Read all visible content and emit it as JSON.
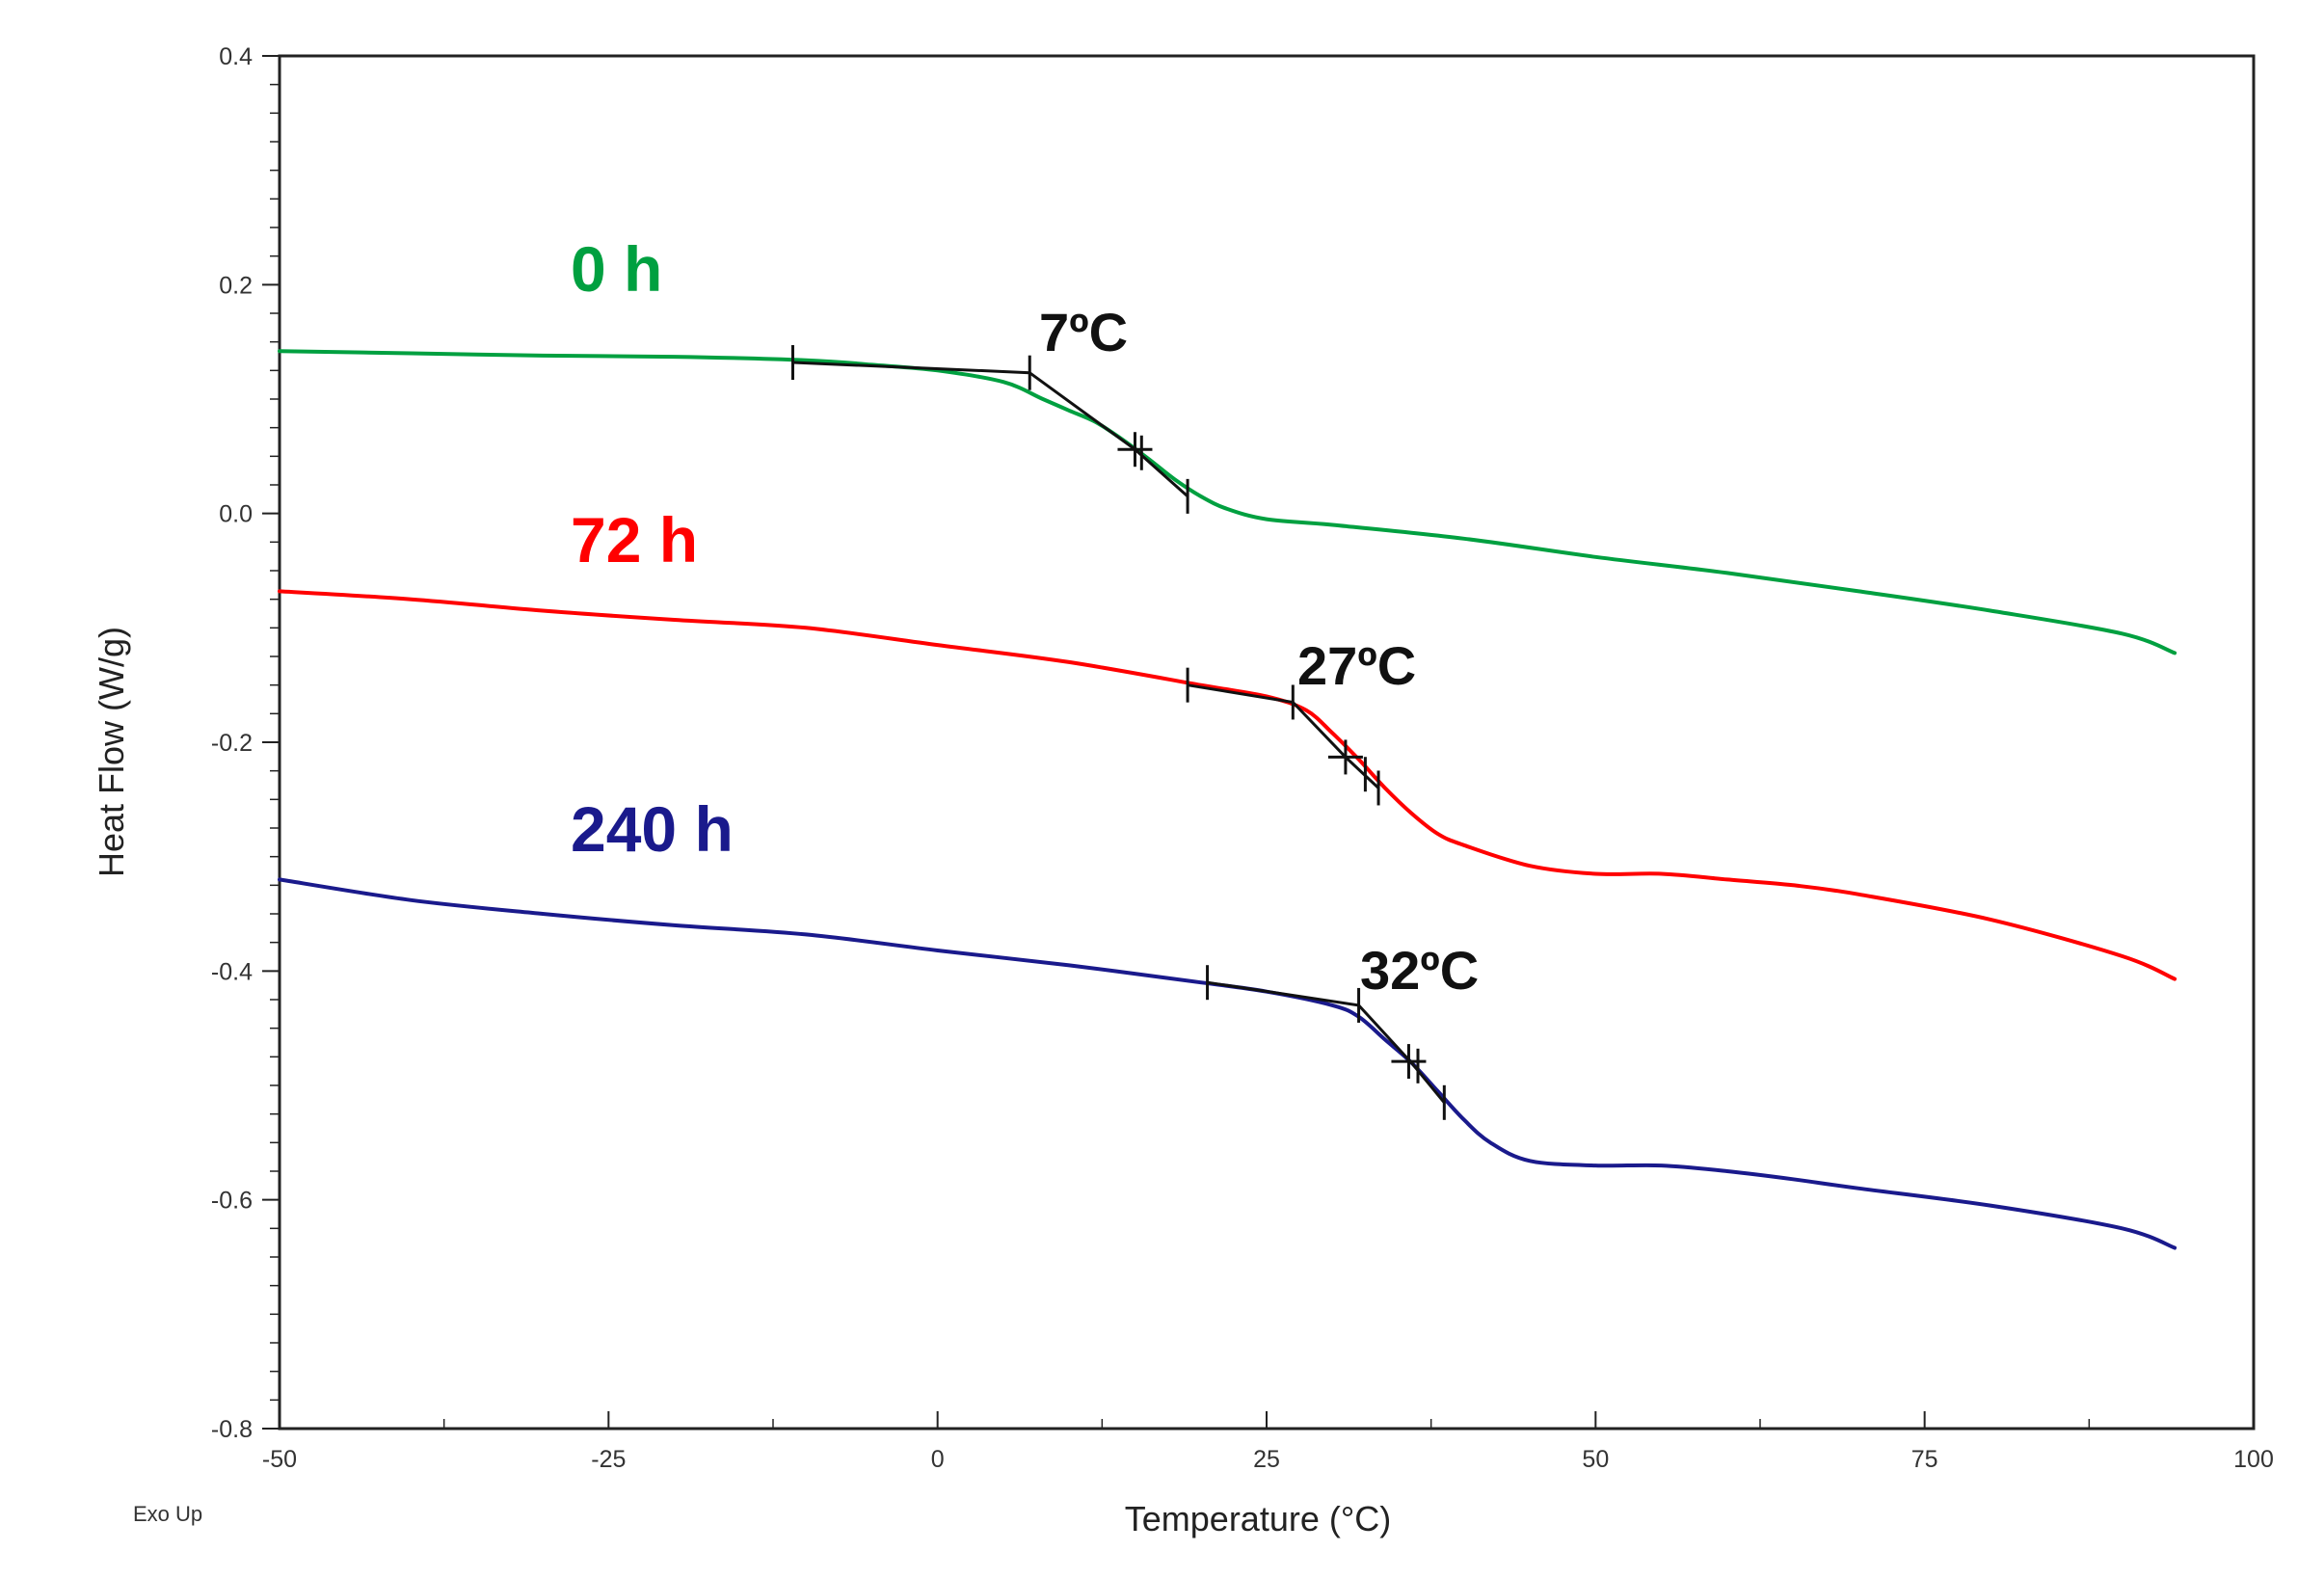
{
  "chart_data": {
    "type": "line",
    "xlabel": "Temperature (°C)",
    "ylabel": "Heat Flow (W/g)",
    "corner_note": "Exo Up",
    "xlim": [
      -50,
      100
    ],
    "ylim": [
      -0.8,
      0.4
    ],
    "x_ticks": [
      -50,
      -25,
      0,
      25,
      50,
      75,
      100
    ],
    "y_ticks": [
      -0.8,
      -0.6,
      -0.4,
      -0.2,
      0.0,
      0.2,
      0.4
    ],
    "x_tick_labels": [
      "-50",
      "-25",
      "0",
      "25",
      "50",
      "75",
      "100"
    ],
    "y_tick_labels": [
      "-0.8",
      "-0.6",
      "-0.4",
      "-0.2",
      "0.0",
      "0.2",
      "0.4"
    ],
    "grid": false,
    "series": [
      {
        "name": "0 h",
        "color": "#00a040",
        "x": [
          -50,
          -40,
          -30,
          -20,
          -10,
          -5,
          0,
          5,
          8,
          10,
          12,
          14,
          16,
          18,
          20,
          22,
          25,
          30,
          40,
          50,
          60,
          70,
          80,
          90,
          94
        ],
        "y": [
          0.142,
          0.14,
          0.138,
          0.137,
          0.134,
          0.13,
          0.125,
          0.115,
          0.1,
          0.09,
          0.08,
          0.065,
          0.048,
          0.03,
          0.015,
          0.004,
          -0.005,
          -0.01,
          -0.022,
          -0.038,
          -0.052,
          -0.068,
          -0.085,
          -0.105,
          -0.122
        ]
      },
      {
        "name": "72 h",
        "color": "#ff0000",
        "x": [
          -50,
          -40,
          -30,
          -20,
          -10,
          0,
          10,
          20,
          25,
          28,
          30,
          32,
          34,
          36,
          38,
          40,
          45,
          50,
          55,
          60,
          65,
          70,
          80,
          90,
          94
        ],
        "y": [
          -0.068,
          -0.075,
          -0.085,
          -0.093,
          -0.1,
          -0.115,
          -0.13,
          -0.15,
          -0.16,
          -0.172,
          -0.192,
          -0.215,
          -0.24,
          -0.262,
          -0.28,
          -0.29,
          -0.308,
          -0.315,
          -0.315,
          -0.32,
          -0.325,
          -0.333,
          -0.355,
          -0.387,
          -0.407
        ]
      },
      {
        "name": "240 h",
        "color": "#1a1a8c",
        "x": [
          -50,
          -40,
          -30,
          -20,
          -10,
          0,
          10,
          20,
          25,
          30,
          32,
          34,
          36,
          38,
          40,
          42,
          45,
          50,
          55,
          60,
          65,
          70,
          80,
          90,
          94
        ],
        "y": [
          -0.32,
          -0.338,
          -0.35,
          -0.36,
          -0.368,
          -0.382,
          -0.395,
          -0.41,
          -0.418,
          -0.43,
          -0.44,
          -0.46,
          -0.48,
          -0.505,
          -0.53,
          -0.55,
          -0.566,
          -0.57,
          -0.57,
          -0.575,
          -0.582,
          -0.59,
          -0.605,
          -0.625,
          -0.642
        ]
      }
    ],
    "annotations": [
      {
        "text": "7ºC",
        "series": "0 h",
        "onset_line": {
          "x": [
            -11,
            7,
            15,
            19
          ],
          "y": [
            0.132,
            0.123,
            0.056,
            0.015
          ]
        },
        "ticks": [
          {
            "x": -11,
            "y": 0.132
          },
          {
            "x": 7,
            "y": 0.123
          },
          {
            "x": 15,
            "y": 0.056
          },
          {
            "x": 15.5,
            "y": 0.053
          },
          {
            "x": 19,
            "y": 0.015
          }
        ]
      },
      {
        "text": "27ºC",
        "series": "72 h",
        "onset_line": {
          "x": [
            19,
            27,
            31,
            33.5
          ],
          "y": [
            -0.15,
            -0.165,
            -0.213,
            -0.24
          ]
        },
        "ticks": [
          {
            "x": 19,
            "y": -0.15
          },
          {
            "x": 27,
            "y": -0.165
          },
          {
            "x": 31,
            "y": -0.213
          },
          {
            "x": 32.5,
            "y": -0.228
          },
          {
            "x": 33.5,
            "y": -0.24
          }
        ]
      },
      {
        "text": "32ºC",
        "series": "240 h",
        "onset_line": {
          "x": [
            20.5,
            32,
            36,
            38.5
          ],
          "y": [
            -0.41,
            -0.43,
            -0.48,
            -0.515
          ]
        },
        "ticks": [
          {
            "x": 20.5,
            "y": -0.41
          },
          {
            "x": 32,
            "y": -0.43
          },
          {
            "x": 35.8,
            "y": -0.479
          },
          {
            "x": 36.5,
            "y": -0.483
          },
          {
            "x": 38.5,
            "y": -0.515
          }
        ]
      }
    ]
  }
}
